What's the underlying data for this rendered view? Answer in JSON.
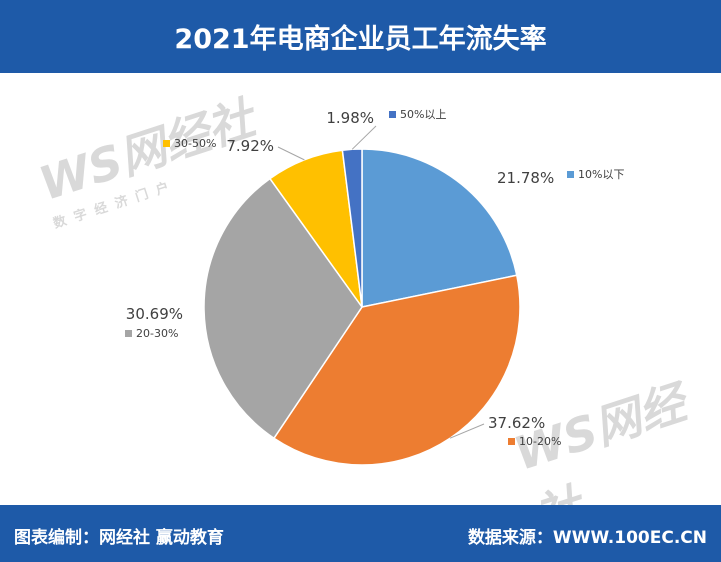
{
  "title": "2021年电商企业员工年流失率",
  "footer": {
    "left": "图表编制：网经社  赢动教育",
    "right": "数据来源：WWW.100EC.CN"
  },
  "watermark": {
    "logo": "WS网经社",
    "url": "WWW.100EC.CN",
    "tagline": "数 字 经 济 门 户"
  },
  "colors": {
    "header_bg": "#1e5aa8",
    "footer_bg": "#1e5aa8"
  },
  "chart_data": {
    "type": "pie",
    "title": "2021年电商企业员工年流失率",
    "slices": [
      {
        "name": "10%以下",
        "value": 21.78,
        "label": "21.78%",
        "color": "#5b9bd5"
      },
      {
        "name": "10-20%",
        "value": 37.62,
        "label": "37.62%",
        "color": "#ed7d31"
      },
      {
        "name": "20-30%",
        "value": 30.69,
        "label": "30.69%",
        "color": "#a5a5a5"
      },
      {
        "name": "30-50%",
        "value": 7.92,
        "label": "7.92%",
        "color": "#ffc000"
      },
      {
        "name": "50%以上",
        "value": 1.98,
        "label": "1.98%",
        "color": "#4472c4"
      }
    ],
    "start_angle": "12 o'clock",
    "direction": "clockwise",
    "legend": "inline next to each data label"
  }
}
